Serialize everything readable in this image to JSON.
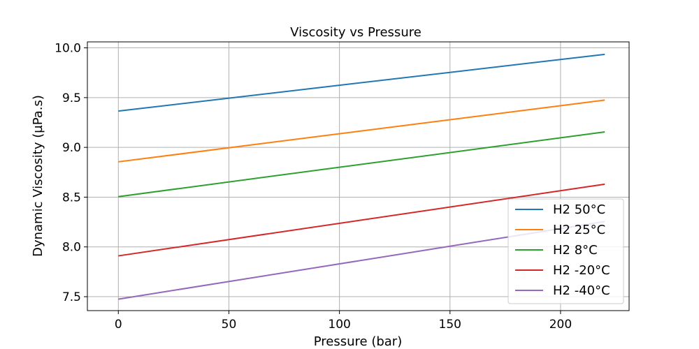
{
  "chart_data": {
    "type": "line",
    "title": "Viscosity vs Pressure",
    "xlabel": "Pressure (bar)",
    "ylabel": "Dynamic Viscosity (µPa.s)",
    "xlim": [
      -14,
      231
    ],
    "ylim": [
      7.36,
      10.06
    ],
    "x_ticks": [
      0,
      50,
      100,
      150,
      200
    ],
    "x_tick_labels": [
      "0",
      "50",
      "100",
      "150",
      "200"
    ],
    "y_ticks": [
      7.5,
      8.0,
      8.5,
      9.0,
      9.5,
      10.0
    ],
    "y_tick_labels": [
      "7.5",
      "8.0",
      "8.5",
      "9.0",
      "9.5",
      "10.0"
    ],
    "grid": true,
    "legend_position": "bottom-right",
    "series": [
      {
        "name": "H2 50°C",
        "color": "#1f77b4",
        "x": [
          0,
          220
        ],
        "y": [
          9.365,
          9.935
        ]
      },
      {
        "name": "H2 25°C",
        "color": "#ff7f0e",
        "x": [
          0,
          220
        ],
        "y": [
          8.855,
          9.475
        ]
      },
      {
        "name": "H2 8°C",
        "color": "#2ca02c",
        "x": [
          0,
          220
        ],
        "y": [
          8.505,
          9.155
        ]
      },
      {
        "name": "H2 -20°C",
        "color": "#d62728",
        "x": [
          0,
          220
        ],
        "y": [
          7.91,
          8.63
        ]
      },
      {
        "name": "H2 -40°C",
        "color": "#9467bd",
        "x": [
          0,
          220
        ],
        "y": [
          7.475,
          8.255
        ]
      }
    ]
  }
}
